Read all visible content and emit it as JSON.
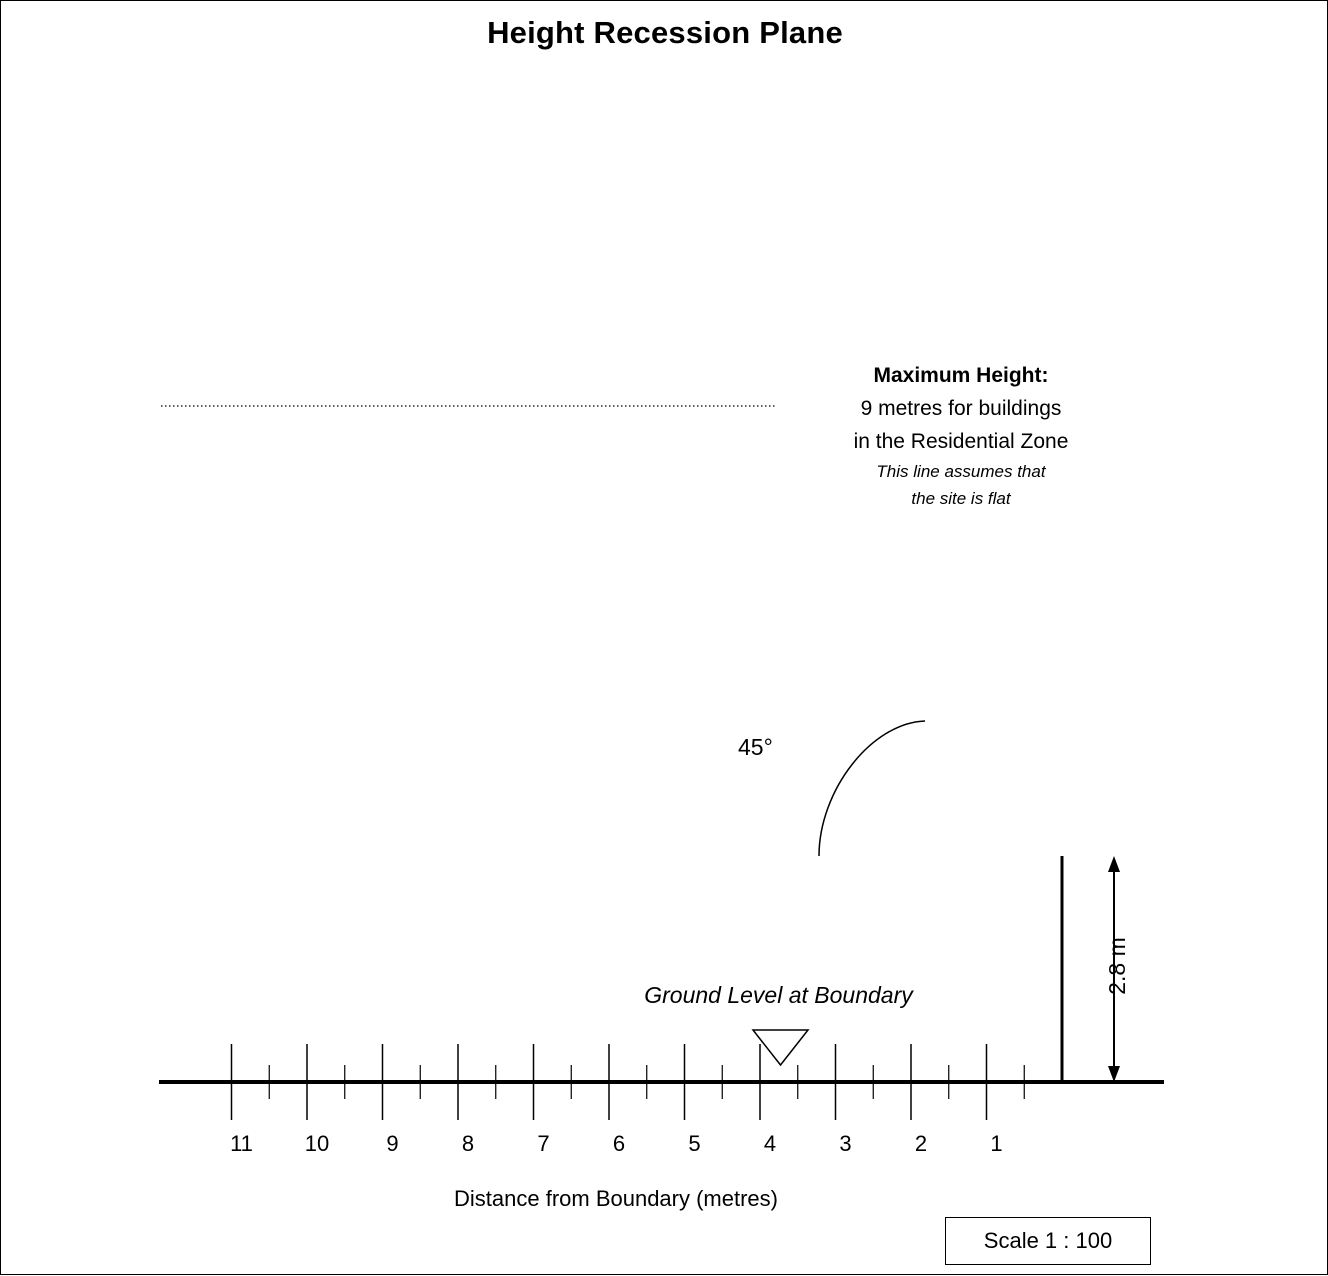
{
  "title": "Height Recession Plane",
  "max_height_note": {
    "heading": "Maximum Height:",
    "line1": "9 metres for buildings",
    "line2": "in the Residential Zone",
    "italic1": "This line assumes that",
    "italic2": "the site is flat"
  },
  "angle_label": "45°",
  "ground_label": "Ground Level at Boundary",
  "height_label": "2.8 m",
  "axis": {
    "title": "Distance from Boundary (metres)",
    "tick_labels": [
      "11",
      "10",
      "9",
      "8",
      "7",
      "6",
      "5",
      "4",
      "3",
      "2",
      "1"
    ]
  },
  "scale": "Scale 1 : 100"
}
